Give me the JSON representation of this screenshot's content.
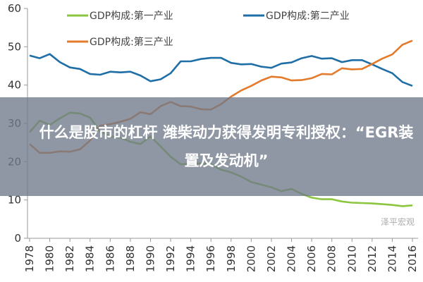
{
  "banner": {
    "title": "什么是股市的杠杆 潍柴动力获得发明专利授权：“EGR装置及发动机”"
  },
  "watermark": "泽平宏观",
  "chart_data": {
    "type": "line",
    "title": "",
    "xlabel": "",
    "ylabel": "",
    "ylim": [
      0,
      60
    ],
    "yticks": [
      0,
      10,
      20,
      30,
      40,
      50,
      60
    ],
    "xticks": [
      1978,
      1980,
      1982,
      1984,
      1986,
      1988,
      1990,
      1992,
      1994,
      1996,
      1998,
      2000,
      2002,
      2004,
      2006,
      2008,
      2010,
      2012,
      2014,
      2016
    ],
    "legend_position": "top",
    "grid": false,
    "x": [
      1978,
      1979,
      1980,
      1981,
      1982,
      1983,
      1984,
      1985,
      1986,
      1987,
      1988,
      1989,
      1990,
      1991,
      1992,
      1993,
      1994,
      1995,
      1996,
      1997,
      1998,
      1999,
      2000,
      2001,
      2002,
      2003,
      2004,
      2005,
      2006,
      2007,
      2008,
      2009,
      2010,
      2011,
      2012,
      2013,
      2014,
      2015,
      2016
    ],
    "series": [
      {
        "name": "GDP构成:第一产业",
        "color": "#8cc540",
        "values": [
          27.7,
          30.7,
          29.6,
          31.3,
          32.8,
          32.6,
          31.5,
          27.9,
          26.6,
          26.3,
          25.2,
          24.6,
          26.6,
          24.0,
          21.3,
          19.3,
          19.5,
          19.6,
          19.3,
          17.9,
          17.2,
          16.1,
          14.7,
          14.0,
          13.3,
          12.3,
          12.9,
          11.6,
          10.6,
          10.2,
          10.2,
          9.6,
          9.3,
          9.2,
          9.1,
          8.9,
          8.7,
          8.4,
          8.6
        ]
      },
      {
        "name": "GDP构成:第二产业",
        "color": "#1f6ea6",
        "values": [
          47.7,
          47.0,
          48.1,
          46.0,
          44.6,
          44.2,
          42.9,
          42.7,
          43.5,
          43.3,
          43.5,
          42.5,
          41.0,
          41.5,
          43.1,
          46.2,
          46.2,
          46.8,
          47.1,
          47.1,
          45.8,
          45.4,
          45.5,
          44.8,
          44.5,
          45.6,
          45.9,
          47.0,
          47.6,
          46.9,
          47.0,
          46.0,
          46.5,
          46.5,
          45.4,
          44.2,
          43.1,
          40.8,
          39.8
        ]
      },
      {
        "name": "GDP构成:第三产业",
        "color": "#e37b2c",
        "values": [
          24.6,
          22.3,
          22.3,
          22.7,
          22.6,
          23.2,
          25.5,
          29.4,
          29.8,
          30.4,
          31.2,
          32.9,
          32.4,
          34.5,
          35.6,
          34.5,
          34.4,
          33.7,
          33.6,
          35.0,
          37.0,
          38.6,
          39.8,
          41.2,
          42.2,
          42.0,
          41.2,
          41.3,
          41.8,
          42.9,
          42.8,
          44.4,
          44.1,
          44.2,
          45.5,
          46.9,
          48.0,
          50.5,
          51.6
        ]
      }
    ]
  }
}
